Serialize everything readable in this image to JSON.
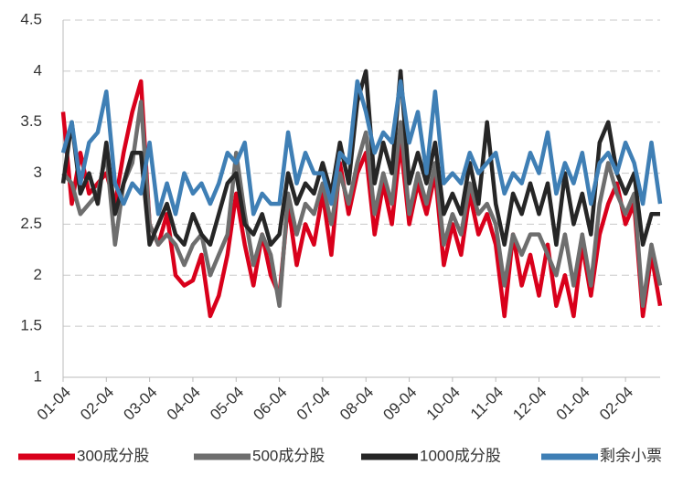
{
  "chart_data": {
    "type": "line",
    "categories": [
      "01-04",
      null,
      null,
      null,
      null,
      "02-04",
      null,
      null,
      null,
      null,
      "03-04",
      null,
      null,
      null,
      null,
      "04-04",
      null,
      null,
      null,
      null,
      "05-04",
      null,
      null,
      null,
      null,
      "06-04",
      null,
      null,
      null,
      null,
      "07-04",
      null,
      null,
      null,
      null,
      "08-04",
      null,
      null,
      null,
      null,
      "09-04",
      null,
      null,
      null,
      null,
      "10-04",
      null,
      null,
      null,
      null,
      "11-04",
      null,
      null,
      null,
      null,
      "12-04",
      null,
      null,
      null,
      null,
      "01-04",
      null,
      null,
      null,
      null,
      "02-04",
      null,
      null,
      null,
      null
    ],
    "series": [
      {
        "name": "300成分股",
        "color": "#d9001b",
        "values": [
          3.6,
          2.7,
          3.2,
          2.8,
          2.9,
          3.0,
          2.7,
          3.2,
          3.6,
          3.9,
          2.5,
          2.3,
          2.6,
          2.0,
          1.9,
          1.95,
          2.2,
          1.6,
          1.8,
          2.2,
          2.8,
          2.3,
          1.9,
          2.4,
          2.0,
          1.8,
          2.7,
          2.1,
          2.5,
          2.3,
          2.8,
          2.2,
          3.1,
          2.6,
          3.0,
          3.2,
          2.4,
          2.9,
          2.5,
          3.3,
          2.5,
          2.9,
          2.6,
          3.0,
          2.1,
          2.5,
          2.2,
          2.8,
          2.4,
          2.6,
          2.3,
          1.6,
          2.4,
          1.9,
          2.2,
          1.8,
          2.3,
          1.7,
          2.0,
          1.6,
          2.3,
          1.8,
          2.4,
          2.7,
          2.9,
          2.5,
          2.7,
          1.6,
          2.2,
          1.7
        ]
      },
      {
        "name": "500成分股",
        "color": "#6e6e6e",
        "values": [
          3.0,
          2.9,
          2.6,
          2.7,
          2.8,
          3.2,
          2.3,
          2.9,
          3.1,
          3.7,
          2.5,
          2.3,
          2.4,
          2.3,
          2.1,
          2.3,
          2.4,
          2.0,
          2.2,
          2.4,
          3.2,
          2.6,
          2.1,
          2.4,
          2.2,
          1.7,
          2.8,
          2.4,
          2.7,
          2.6,
          2.9,
          2.5,
          3.0,
          2.7,
          3.1,
          3.4,
          2.6,
          3.0,
          2.7,
          3.5,
          2.6,
          3.0,
          2.7,
          3.1,
          2.3,
          2.6,
          2.4,
          2.9,
          2.6,
          2.7,
          2.5,
          1.9,
          2.4,
          2.2,
          2.4,
          2.4,
          2.2,
          2.0,
          2.4,
          1.9,
          2.4,
          1.9,
          2.7,
          3.1,
          2.8,
          2.6,
          2.8,
          1.7,
          2.3,
          1.9
        ]
      },
      {
        "name": "1000成分股",
        "color": "#262626",
        "values": [
          2.9,
          3.5,
          2.8,
          3.0,
          2.7,
          3.3,
          2.6,
          2.9,
          3.2,
          3.2,
          2.3,
          2.5,
          2.7,
          2.4,
          2.3,
          2.6,
          2.4,
          2.3,
          2.6,
          2.9,
          3.0,
          2.5,
          2.4,
          2.6,
          2.3,
          2.4,
          3.0,
          2.7,
          2.9,
          2.8,
          3.1,
          2.8,
          3.3,
          2.9,
          3.7,
          4.0,
          2.9,
          3.3,
          3.0,
          4.0,
          2.9,
          3.2,
          2.9,
          3.3,
          2.6,
          2.8,
          2.6,
          3.1,
          2.7,
          3.5,
          2.7,
          2.3,
          2.8,
          2.6,
          2.9,
          2.6,
          2.9,
          2.3,
          3.0,
          2.5,
          2.8,
          2.4,
          3.3,
          3.5,
          3.0,
          2.8,
          3.0,
          2.3,
          2.6,
          2.6
        ]
      },
      {
        "name": "剩余小票",
        "color": "#3f7fb5",
        "values": [
          3.2,
          3.5,
          2.9,
          3.3,
          3.4,
          3.8,
          2.9,
          2.7,
          2.9,
          2.8,
          3.3,
          2.6,
          2.9,
          2.6,
          3.0,
          2.8,
          2.9,
          2.7,
          2.9,
          3.2,
          3.1,
          3.3,
          2.6,
          2.8,
          2.7,
          2.7,
          3.4,
          2.9,
          3.2,
          3.0,
          3.0,
          2.7,
          3.2,
          3.1,
          3.9,
          3.6,
          3.2,
          3.4,
          3.3,
          3.9,
          3.3,
          3.6,
          3.0,
          3.8,
          2.9,
          3.0,
          2.9,
          3.2,
          3.0,
          3.1,
          3.2,
          2.8,
          3.0,
          2.9,
          3.2,
          3.0,
          3.4,
          2.8,
          3.1,
          2.9,
          3.2,
          2.7,
          3.1,
          3.2,
          3.0,
          3.3,
          3.1,
          2.7,
          3.3,
          2.7
        ]
      }
    ],
    "ylim": [
      1,
      4.5
    ],
    "yticks": [
      1,
      1.5,
      2,
      2.5,
      3,
      3.5,
      4,
      4.5
    ],
    "grid": true,
    "legend": "bottom"
  }
}
